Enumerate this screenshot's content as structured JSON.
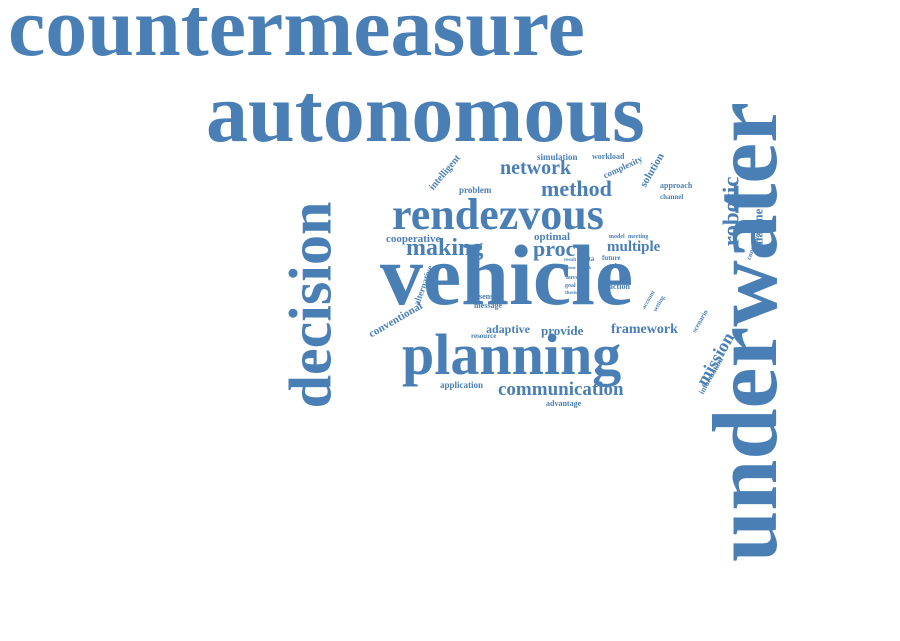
{
  "word_cloud": {
    "color": "#4a7fb5",
    "words": [
      {
        "text": "countermeasure",
        "weight": 1.0
      },
      {
        "text": "underwater",
        "weight": 1.0
      },
      {
        "text": "autonomous",
        "weight": 0.9
      },
      {
        "text": "vehicle",
        "weight": 0.92
      },
      {
        "text": "decision",
        "weight": 0.66
      },
      {
        "text": "planning",
        "weight": 0.64
      },
      {
        "text": "rendezvous",
        "weight": 0.5
      },
      {
        "text": "network",
        "weight": 0.24
      },
      {
        "text": "method",
        "weight": 0.24
      },
      {
        "text": "robotic",
        "weight": 0.26
      },
      {
        "text": "making",
        "weight": 0.26
      },
      {
        "text": "proc",
        "weight": 0.24
      },
      {
        "text": "mission",
        "weight": 0.2
      },
      {
        "text": "communication",
        "weight": 0.22
      },
      {
        "text": "multiple",
        "weight": 0.16
      },
      {
        "text": "marine",
        "weight": 0.14
      },
      {
        "text": "framework",
        "weight": 0.16
      },
      {
        "text": "provide",
        "weight": 0.14
      },
      {
        "text": "adaptive",
        "weight": 0.13
      },
      {
        "text": "cooperative",
        "weight": 0.12
      },
      {
        "text": "optimal",
        "weight": 0.12
      },
      {
        "text": "intelligent",
        "weight": 0.11
      },
      {
        "text": "solution",
        "weight": 0.11
      },
      {
        "text": "conventional",
        "weight": 0.12
      },
      {
        "text": "alternative",
        "weight": 0.1
      },
      {
        "text": "simulation",
        "weight": 0.09
      },
      {
        "text": "workload",
        "weight": 0.08
      },
      {
        "text": "complexity",
        "weight": 0.09
      },
      {
        "text": "problem",
        "weight": 0.09
      },
      {
        "text": "approach",
        "weight": 0.08
      },
      {
        "text": "channel",
        "weight": 0.07
      },
      {
        "text": "application",
        "weight": 0.09
      },
      {
        "text": "advantage",
        "weight": 0.08
      },
      {
        "text": "information",
        "weight": 0.09
      },
      {
        "text": "constraint",
        "weight": 0.08
      },
      {
        "text": "sensor",
        "weight": 0.08
      },
      {
        "text": "message",
        "weight": 0.08
      },
      {
        "text": "resource",
        "weight": 0.07
      },
      {
        "text": "action",
        "weight": 0.08
      },
      {
        "text": "scenario",
        "weight": 0.07
      },
      {
        "text": "model",
        "weight": 0.06
      },
      {
        "text": "meeting",
        "weight": 0.06
      },
      {
        "text": "data",
        "weight": 0.07
      },
      {
        "text": "future",
        "weight": 0.07
      },
      {
        "text": "point",
        "weight": 0.06
      },
      {
        "text": "auvs",
        "weight": 0.06
      },
      {
        "text": "goal",
        "weight": 0.06
      },
      {
        "text": "thesis",
        "weight": 0.05
      },
      {
        "text": "result",
        "weight": 0.05
      },
      {
        "text": "account",
        "weight": 0.05
      },
      {
        "text": "setting",
        "weight": 0.05
      },
      {
        "text": "time",
        "weight": 0.04
      },
      {
        "text": "task",
        "weight": 0.04
      }
    ]
  }
}
